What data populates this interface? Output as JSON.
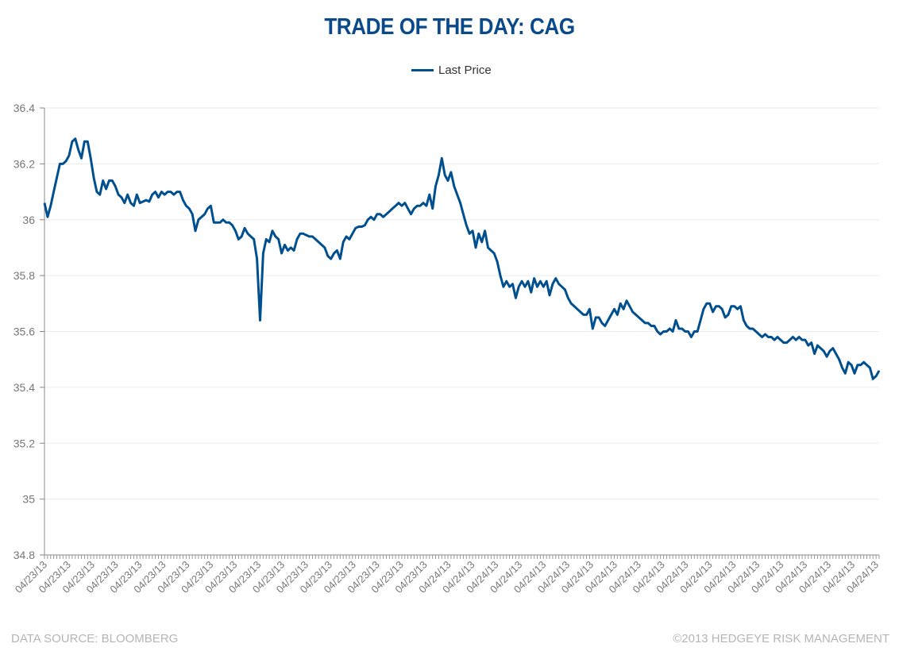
{
  "chart_data": {
    "type": "line",
    "title": "TRADE OF THE DAY: CAG",
    "legend": {
      "position": "top",
      "entries": [
        "Last Price"
      ]
    },
    "colors": {
      "series": "#00508f",
      "title": "#0a4a8a",
      "grid": "#ebebeb",
      "axis": "#888888"
    },
    "ylim": [
      34.8,
      36.4
    ],
    "yticks": [
      "36.4",
      "36.2",
      "36",
      "35.8",
      "35.6",
      "35.4",
      "35.2",
      "35",
      "34.8"
    ],
    "ytick_values": [
      36.4,
      36.2,
      36.0,
      35.8,
      35.6,
      35.4,
      35.2,
      35.0,
      34.8
    ],
    "grid": true,
    "xticks": [
      "04/23/13",
      "04/23/13",
      "04/23/13",
      "04/23/13",
      "04/23/13",
      "04/23/13",
      "04/23/13",
      "04/23/13",
      "04/23/13",
      "04/23/13",
      "04/23/13",
      "04/23/13",
      "04/23/13",
      "04/23/13",
      "04/23/13",
      "04/23/13",
      "04/23/13",
      "04/24/13",
      "04/24/13",
      "04/24/13",
      "04/24/13",
      "04/24/13",
      "04/24/13",
      "04/24/13",
      "04/24/13",
      "04/24/13",
      "04/24/13",
      "04/24/13",
      "04/24/13",
      "04/24/13",
      "04/24/13",
      "04/24/13",
      "04/24/13",
      "04/24/13",
      "04/24/13",
      "04/24/13"
    ],
    "series": [
      {
        "name": "Last Price",
        "values": [
          36.06,
          36.01,
          36.05,
          36.1,
          36.15,
          36.2,
          36.2,
          36.21,
          36.23,
          36.28,
          36.29,
          36.25,
          36.22,
          36.28,
          36.28,
          36.22,
          36.15,
          36.1,
          36.09,
          36.14,
          36.11,
          36.14,
          36.14,
          36.12,
          36.09,
          36.08,
          36.06,
          36.09,
          36.06,
          36.05,
          36.09,
          36.06,
          36.065,
          36.07,
          36.065,
          36.09,
          36.1,
          36.08,
          36.1,
          36.09,
          36.1,
          36.1,
          36.09,
          36.1,
          36.1,
          36.07,
          36.05,
          36.04,
          36.02,
          35.96,
          36.0,
          36.01,
          36.02,
          36.04,
          36.05,
          35.99,
          35.99,
          35.99,
          36.0,
          35.99,
          35.99,
          35.98,
          35.96,
          35.93,
          35.94,
          35.97,
          35.95,
          35.94,
          35.93,
          35.86,
          35.64,
          35.88,
          35.93,
          35.92,
          35.96,
          35.94,
          35.93,
          35.88,
          35.91,
          35.89,
          35.9,
          35.89,
          35.93,
          35.95,
          35.95,
          35.945,
          35.94,
          35.94,
          35.93,
          35.92,
          35.91,
          35.9,
          35.87,
          35.86,
          35.88,
          35.89,
          35.86,
          35.92,
          35.94,
          35.93,
          35.95,
          35.97,
          35.975,
          35.975,
          35.98,
          36.0,
          36.01,
          36.0,
          36.02,
          36.02,
          36.01,
          36.02,
          36.03,
          36.04,
          36.05,
          36.06,
          36.05,
          36.06,
          36.04,
          36.02,
          36.04,
          36.05,
          36.05,
          36.06,
          36.05,
          36.09,
          36.04,
          36.12,
          36.16,
          36.22,
          36.16,
          36.14,
          36.17,
          36.12,
          36.09,
          36.06,
          36.02,
          35.98,
          35.95,
          35.96,
          35.9,
          35.95,
          35.92,
          35.96,
          35.9,
          35.89,
          35.88,
          35.85,
          35.8,
          35.76,
          35.78,
          35.76,
          35.77,
          35.72,
          35.76,
          35.78,
          35.76,
          35.78,
          35.74,
          35.79,
          35.76,
          35.78,
          35.76,
          35.78,
          35.73,
          35.77,
          35.79,
          35.77,
          35.76,
          35.75,
          35.72,
          35.7,
          35.69,
          35.68,
          35.67,
          35.66,
          35.66,
          35.68,
          35.61,
          35.65,
          35.65,
          35.63,
          35.62,
          35.64,
          35.66,
          35.68,
          35.66,
          35.7,
          35.68,
          35.71,
          35.69,
          35.67,
          35.66,
          35.65,
          35.64,
          35.63,
          35.63,
          35.62,
          35.62,
          35.6,
          35.59,
          35.6,
          35.6,
          35.61,
          35.6,
          35.64,
          35.61,
          35.61,
          35.6,
          35.6,
          35.58,
          35.6,
          35.6,
          35.64,
          35.68,
          35.7,
          35.7,
          35.67,
          35.69,
          35.69,
          35.68,
          35.65,
          35.66,
          35.69,
          35.69,
          35.68,
          35.69,
          35.64,
          35.62,
          35.61,
          35.61,
          35.6,
          35.59,
          35.58,
          35.59,
          35.58,
          35.58,
          35.57,
          35.58,
          35.57,
          35.56,
          35.56,
          35.57,
          35.58,
          35.57,
          35.58,
          35.57,
          35.57,
          35.55,
          35.56,
          35.52,
          35.55,
          35.54,
          35.53,
          35.51,
          35.53,
          35.54,
          35.52,
          35.5,
          35.47,
          35.45,
          35.49,
          35.48,
          35.45,
          35.48,
          35.48,
          35.49,
          35.48,
          35.47,
          35.43,
          35.44,
          35.46
        ]
      }
    ]
  },
  "footer": {
    "source": "DATA SOURCE:  BLOOMBERG",
    "copyright": "©2013 HEDGEYE RISK MANAGEMENT"
  }
}
